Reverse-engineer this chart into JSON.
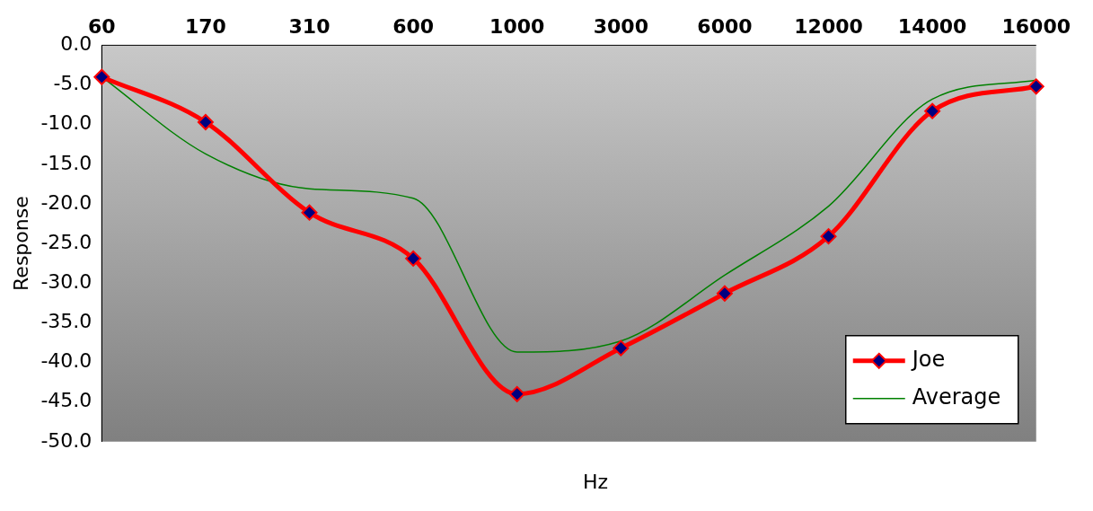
{
  "chart_data": {
    "type": "line",
    "xlabel": "Hz",
    "ylabel": "Response",
    "categories": [
      "60",
      "170",
      "310",
      "600",
      "1000",
      "3000",
      "6000",
      "12000",
      "14000",
      "16000"
    ],
    "series": [
      {
        "name": "Joe",
        "color": "#ff0000",
        "marker": "diamond",
        "values": [
          -4.0,
          -9.7,
          -21.1,
          -26.9,
          -44.0,
          -38.2,
          -31.3,
          -24.1,
          -8.3,
          -5.2
        ]
      },
      {
        "name": "Average",
        "color": "#008000",
        "marker": "none",
        "values": [
          -4.0,
          -13.7,
          -18.1,
          -19.3,
          -38.7,
          -37.3,
          -29.0,
          -20.3,
          -6.8,
          -4.4
        ]
      }
    ],
    "ylim": [
      -50,
      0
    ],
    "yticks": [
      {
        "value": 0,
        "label": "0.0"
      },
      {
        "value": -5,
        "label": "-5.0"
      },
      {
        "value": -10,
        "label": "-10.0"
      },
      {
        "value": -15,
        "label": "-15.0"
      },
      {
        "value": -20,
        "label": "-20.0"
      },
      {
        "value": -25,
        "label": "-25.0"
      },
      {
        "value": -30,
        "label": "-30.0"
      },
      {
        "value": -35,
        "label": "-35.0"
      },
      {
        "value": -40,
        "label": "-40.0"
      },
      {
        "value": -45,
        "label": "-45.0"
      },
      {
        "value": -50,
        "label": "-50.0"
      }
    ],
    "grid": false,
    "legend": "bottom right"
  }
}
